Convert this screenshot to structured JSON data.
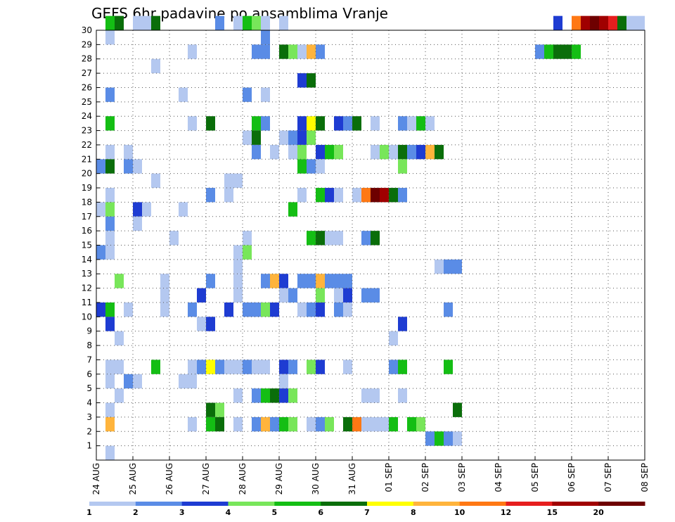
{
  "chart_data": {
    "type": "heatmap",
    "title": "GEFS 6hr padavine po ansamblima Vranje",
    "xlabel": "",
    "ylabel": "",
    "x_tick_labels": [
      "24 AUG",
      "25 AUG",
      "26 AUG",
      "27 AUG",
      "28 AUG",
      "29 AUG",
      "30 AUG",
      "31 AUG",
      "01 SEP",
      "02 SEP",
      "03 SEP",
      "04 SEP",
      "05 SEP",
      "06 SEP",
      "07 SEP",
      "08 SEP"
    ],
    "y_tick_labels": [
      "1",
      "2",
      "3",
      "4",
      "5",
      "6",
      "7",
      "8",
      "9",
      "10",
      "11",
      "12",
      "13",
      "14",
      "15",
      "16",
      "17",
      "18",
      "19",
      "20",
      "21",
      "22",
      "23",
      "24",
      "25",
      "26",
      "27",
      "28",
      "29",
      "30"
    ],
    "x_range_steps": [
      0,
      60
    ],
    "y_range": [
      0,
      30
    ],
    "grid": true,
    "color_levels": [
      "1",
      "2",
      "3",
      "4",
      "5",
      "6",
      "7",
      "8",
      "10",
      "12",
      "15",
      "20"
    ],
    "colors": [
      "#b4c8f0",
      "#5a8ce6",
      "#1e3cd2",
      "#78e65a",
      "#14be14",
      "#0a6e0a",
      "#ffff00",
      "#ffb43c",
      "#ff7814",
      "#e61e1e",
      "#a00000",
      "#6e0000"
    ],
    "cells": [
      [
        1,
        30,
        4
      ],
      [
        2,
        30,
        5
      ],
      [
        4,
        30,
        0
      ],
      [
        5,
        30,
        0
      ],
      [
        6,
        30,
        5
      ],
      [
        13,
        30,
        1
      ],
      [
        15,
        30,
        0
      ],
      [
        16,
        30,
        4
      ],
      [
        17,
        30,
        3
      ],
      [
        18,
        30,
        0
      ],
      [
        20,
        30,
        0
      ],
      [
        50,
        30,
        2
      ],
      [
        52,
        30,
        8
      ],
      [
        53,
        30,
        10
      ],
      [
        54,
        30,
        11
      ],
      [
        55,
        30,
        10
      ],
      [
        56,
        30,
        9
      ],
      [
        57,
        30,
        5
      ],
      [
        58,
        30,
        0
      ],
      [
        59,
        30,
        0
      ],
      [
        1,
        29,
        0
      ],
      [
        18,
        29,
        1
      ],
      [
        10,
        28,
        0
      ],
      [
        17,
        28,
        1
      ],
      [
        18,
        28,
        1
      ],
      [
        20,
        28,
        5
      ],
      [
        21,
        28,
        3
      ],
      [
        22,
        28,
        0
      ],
      [
        23,
        28,
        7
      ],
      [
        24,
        28,
        1
      ],
      [
        48,
        28,
        1
      ],
      [
        49,
        28,
        4
      ],
      [
        50,
        28,
        5
      ],
      [
        51,
        28,
        5
      ],
      [
        52,
        28,
        4
      ],
      [
        6,
        27,
        0
      ],
      [
        22,
        26,
        2
      ],
      [
        23,
        26,
        5
      ],
      [
        1,
        25,
        1
      ],
      [
        9,
        25,
        0
      ],
      [
        16,
        25,
        1
      ],
      [
        18,
        25,
        0
      ],
      [
        1,
        23,
        4
      ],
      [
        10,
        23,
        0
      ],
      [
        12,
        23,
        5
      ],
      [
        17,
        23,
        4
      ],
      [
        18,
        23,
        1
      ],
      [
        22,
        23,
        2
      ],
      [
        23,
        23,
        6
      ],
      [
        24,
        23,
        5
      ],
      [
        26,
        23,
        2
      ],
      [
        27,
        23,
        1
      ],
      [
        28,
        23,
        5
      ],
      [
        30,
        23,
        0
      ],
      [
        33,
        23,
        1
      ],
      [
        34,
        23,
        0
      ],
      [
        35,
        23,
        4
      ],
      [
        36,
        23,
        0
      ],
      [
        16,
        22,
        0
      ],
      [
        17,
        22,
        5
      ],
      [
        20,
        22,
        0
      ],
      [
        21,
        22,
        1
      ],
      [
        22,
        22,
        2
      ],
      [
        23,
        22,
        3
      ],
      [
        1,
        21,
        0
      ],
      [
        3,
        21,
        0
      ],
      [
        17,
        21,
        1
      ],
      [
        19,
        21,
        0
      ],
      [
        21,
        21,
        0
      ],
      [
        22,
        21,
        3
      ],
      [
        24,
        21,
        2
      ],
      [
        25,
        21,
        4
      ],
      [
        26,
        21,
        3
      ],
      [
        30,
        21,
        0
      ],
      [
        31,
        21,
        3
      ],
      [
        32,
        21,
        0
      ],
      [
        33,
        21,
        5
      ],
      [
        34,
        21,
        1
      ],
      [
        35,
        21,
        2
      ],
      [
        36,
        21,
        7
      ],
      [
        37,
        21,
        5
      ],
      [
        0,
        20,
        1
      ],
      [
        1,
        20,
        5
      ],
      [
        3,
        20,
        1
      ],
      [
        4,
        20,
        0
      ],
      [
        22,
        20,
        4
      ],
      [
        23,
        20,
        1
      ],
      [
        24,
        20,
        0
      ],
      [
        33,
        20,
        3
      ],
      [
        6,
        19,
        0
      ],
      [
        14,
        19,
        0
      ],
      [
        15,
        19,
        0
      ],
      [
        1,
        18,
        0
      ],
      [
        12,
        18,
        1
      ],
      [
        14,
        18,
        0
      ],
      [
        22,
        18,
        0
      ],
      [
        24,
        18,
        4
      ],
      [
        25,
        18,
        2
      ],
      [
        26,
        18,
        0
      ],
      [
        28,
        18,
        0
      ],
      [
        29,
        18,
        8
      ],
      [
        30,
        18,
        11
      ],
      [
        31,
        18,
        10
      ],
      [
        32,
        18,
        5
      ],
      [
        33,
        18,
        1
      ],
      [
        0,
        17,
        0
      ],
      [
        1,
        17,
        3
      ],
      [
        4,
        17,
        2
      ],
      [
        5,
        17,
        0
      ],
      [
        9,
        17,
        0
      ],
      [
        21,
        17,
        4
      ],
      [
        1,
        16,
        1
      ],
      [
        4,
        16,
        0
      ],
      [
        16,
        15,
        0
      ],
      [
        8,
        15,
        0
      ],
      [
        1,
        15,
        0
      ],
      [
        23,
        15,
        4
      ],
      [
        24,
        15,
        5
      ],
      [
        25,
        15,
        0
      ],
      [
        26,
        15,
        0
      ],
      [
        29,
        15,
        1
      ],
      [
        30,
        15,
        5
      ],
      [
        0,
        14,
        1
      ],
      [
        1,
        14,
        0
      ],
      [
        15,
        14,
        0
      ],
      [
        16,
        14,
        3
      ],
      [
        15,
        13,
        0
      ],
      [
        37,
        13,
        0
      ],
      [
        38,
        13,
        1
      ],
      [
        39,
        13,
        1
      ],
      [
        2,
        12,
        3
      ],
      [
        7,
        12,
        0
      ],
      [
        12,
        12,
        1
      ],
      [
        15,
        12,
        0
      ],
      [
        18,
        12,
        1
      ],
      [
        19,
        12,
        7
      ],
      [
        20,
        12,
        2
      ],
      [
        22,
        12,
        1
      ],
      [
        23,
        12,
        1
      ],
      [
        24,
        12,
        7
      ],
      [
        25,
        12,
        1
      ],
      [
        26,
        12,
        1
      ],
      [
        27,
        12,
        1
      ],
      [
        7,
        11,
        0
      ],
      [
        11,
        11,
        2
      ],
      [
        15,
        11,
        0
      ],
      [
        20,
        11,
        0
      ],
      [
        21,
        11,
        1
      ],
      [
        24,
        11,
        3
      ],
      [
        26,
        11,
        0
      ],
      [
        27,
        11,
        2
      ],
      [
        29,
        11,
        1
      ],
      [
        30,
        11,
        1
      ],
      [
        0,
        10,
        2
      ],
      [
        1,
        10,
        4
      ],
      [
        3,
        10,
        0
      ],
      [
        7,
        10,
        0
      ],
      [
        10,
        10,
        1
      ],
      [
        14,
        10,
        2
      ],
      [
        16,
        10,
        1
      ],
      [
        17,
        10,
        1
      ],
      [
        18,
        10,
        3
      ],
      [
        19,
        10,
        2
      ],
      [
        22,
        10,
        0
      ],
      [
        23,
        10,
        1
      ],
      [
        24,
        10,
        2
      ],
      [
        26,
        10,
        1
      ],
      [
        27,
        10,
        0
      ],
      [
        38,
        10,
        1
      ],
      [
        1,
        9,
        2
      ],
      [
        11,
        9,
        0
      ],
      [
        12,
        9,
        2
      ],
      [
        33,
        9,
        2
      ],
      [
        2,
        8,
        0
      ],
      [
        32,
        8,
        0
      ],
      [
        1,
        6,
        0
      ],
      [
        2,
        6,
        0
      ],
      [
        6,
        6,
        4
      ],
      [
        10,
        6,
        0
      ],
      [
        11,
        6,
        1
      ],
      [
        12,
        6,
        6
      ],
      [
        13,
        6,
        1
      ],
      [
        14,
        6,
        0
      ],
      [
        15,
        6,
        0
      ],
      [
        16,
        6,
        1
      ],
      [
        17,
        6,
        0
      ],
      [
        18,
        6,
        0
      ],
      [
        20,
        6,
        2
      ],
      [
        21,
        6,
        1
      ],
      [
        23,
        6,
        3
      ],
      [
        24,
        6,
        2
      ],
      [
        27,
        6,
        0
      ],
      [
        32,
        6,
        1
      ],
      [
        33,
        6,
        4
      ],
      [
        38,
        6,
        4
      ],
      [
        1,
        5,
        0
      ],
      [
        3,
        5,
        1
      ],
      [
        4,
        5,
        0
      ],
      [
        9,
        5,
        0
      ],
      [
        10,
        5,
        0
      ],
      [
        20,
        5,
        0
      ],
      [
        2,
        4,
        0
      ],
      [
        15,
        4,
        0
      ],
      [
        17,
        4,
        1
      ],
      [
        18,
        4,
        4
      ],
      [
        19,
        4,
        5
      ],
      [
        20,
        4,
        2
      ],
      [
        21,
        4,
        3
      ],
      [
        29,
        4,
        0
      ],
      [
        30,
        4,
        0
      ],
      [
        33,
        4,
        0
      ],
      [
        1,
        3,
        0
      ],
      [
        12,
        3,
        5
      ],
      [
        13,
        3,
        3
      ],
      [
        39,
        3,
        5
      ],
      [
        1,
        2,
        7
      ],
      [
        10,
        2,
        0
      ],
      [
        12,
        2,
        4
      ],
      [
        13,
        2,
        5
      ],
      [
        15,
        2,
        0
      ],
      [
        17,
        2,
        1
      ],
      [
        18,
        2,
        7
      ],
      [
        19,
        2,
        1
      ],
      [
        20,
        2,
        4
      ],
      [
        21,
        2,
        3
      ],
      [
        23,
        2,
        0
      ],
      [
        24,
        2,
        1
      ],
      [
        25,
        2,
        3
      ],
      [
        27,
        2,
        5
      ],
      [
        28,
        2,
        8
      ],
      [
        29,
        2,
        0
      ],
      [
        30,
        2,
        0
      ],
      [
        31,
        2,
        0
      ],
      [
        32,
        2,
        4
      ],
      [
        34,
        2,
        4
      ],
      [
        35,
        2,
        3
      ],
      [
        36,
        1,
        1
      ],
      [
        37,
        1,
        4
      ],
      [
        38,
        1,
        1
      ],
      [
        39,
        1,
        0
      ],
      [
        1,
        0,
        0
      ]
    ]
  }
}
